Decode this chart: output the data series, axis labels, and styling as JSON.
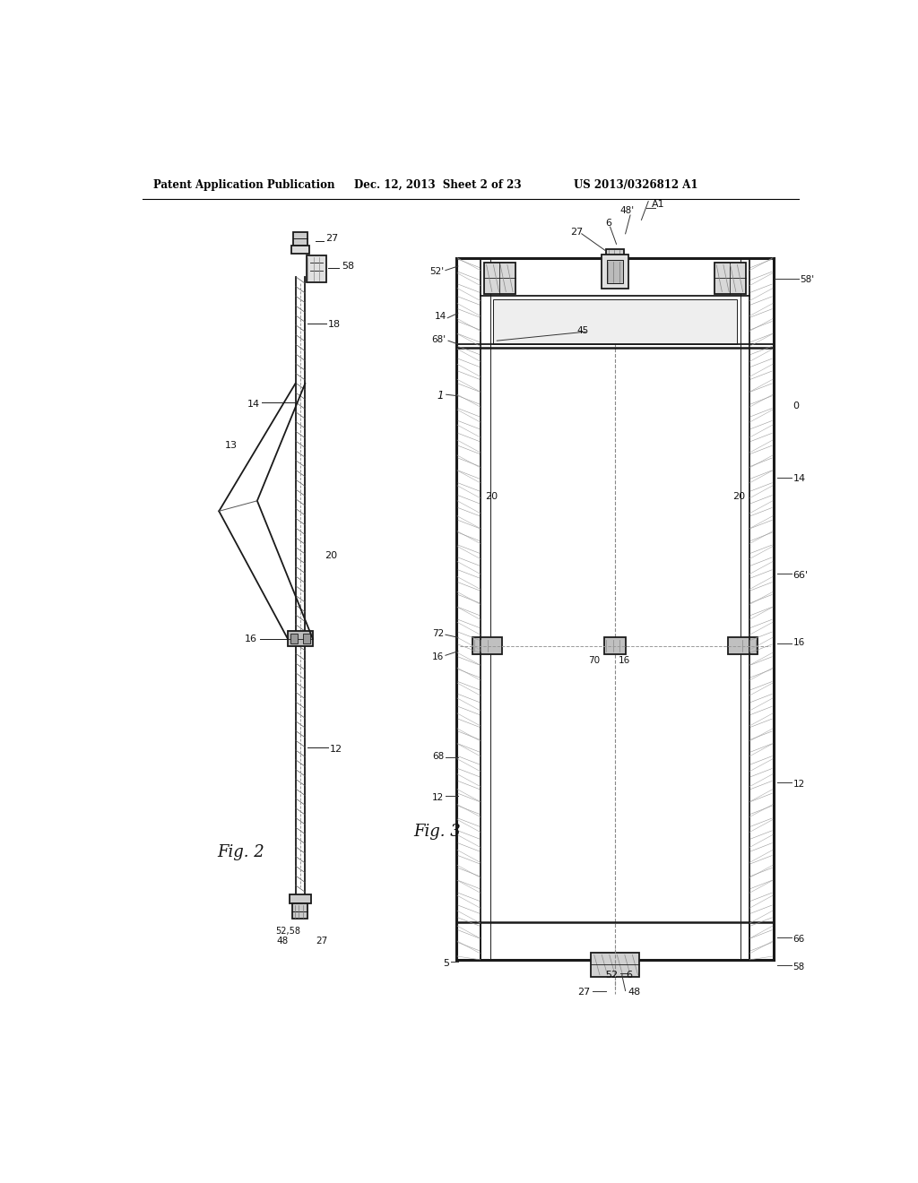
{
  "bg_color": "#ffffff",
  "header_text": "Patent Application Publication",
  "header_date": "Dec. 12, 2013  Sheet 2 of 23",
  "header_patent": "US 2013/0326812 A1",
  "fig2_label": "Fig. 2",
  "fig3_label": "Fig. 3",
  "lc": "#1a1a1a",
  "lw": 1.3,
  "tlw": 0.7,
  "hatch_color": "#555555"
}
